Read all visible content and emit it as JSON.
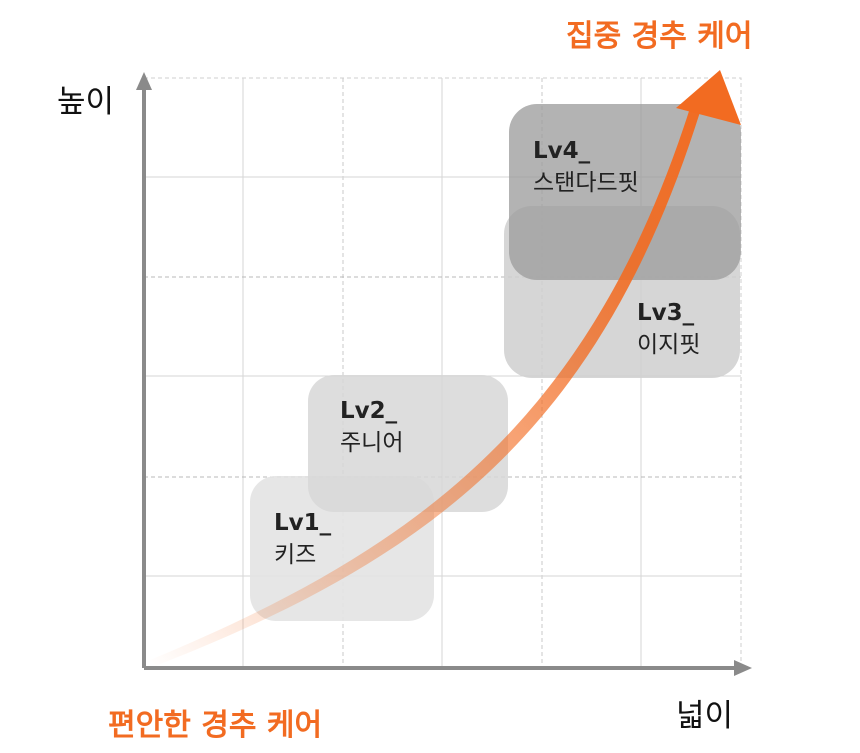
{
  "axes": {
    "y_label": "높이",
    "x_label": "넓이"
  },
  "annotations": {
    "top_right": "집중 경추 케어",
    "bottom_left": "편안한 경추 케어"
  },
  "levels": [
    {
      "code": "Lv1_",
      "name": "키즈"
    },
    {
      "code": "Lv2_",
      "name": "주니어"
    },
    {
      "code": "Lv3_",
      "name": "이지핏"
    },
    {
      "code": "Lv4_",
      "name": "스탠다드핏"
    }
  ],
  "colors": {
    "accent": "#F26B21",
    "axis": "#8a8a8a",
    "grid": "#cfcfcf",
    "box_light": "#e6e6e6",
    "box_mid": "#d2d2d2",
    "box_dark": "#a6a6a6",
    "label_text": "#222222"
  }
}
